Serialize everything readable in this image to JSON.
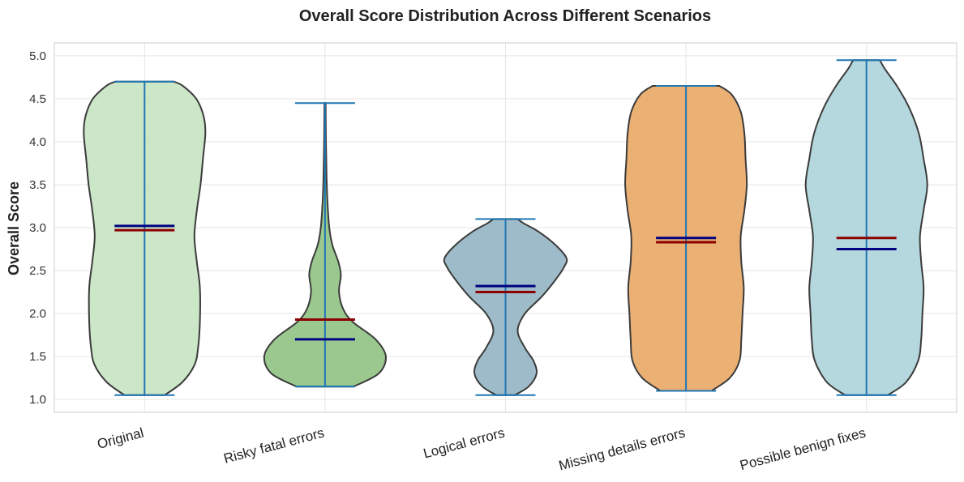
{
  "chart_data": {
    "type": "violin",
    "title": "Overall Score Distribution Across Different Scenarios",
    "xlabel": "",
    "ylabel": "Overall Score",
    "ylim": [
      0.85,
      5.15
    ],
    "yticks": [
      "1.0",
      "1.5",
      "2.0",
      "2.5",
      "3.0",
      "3.5",
      "4.0",
      "4.5",
      "5.0"
    ],
    "grid": true,
    "colors": {
      "edge": "#3b3b3b",
      "extrema_line": "#1f77b4",
      "mean_line": "#000080",
      "median_line": "#8b0000",
      "grid": "#e6e6e6",
      "axes_border": "#cccccc"
    },
    "categories": [
      "Original",
      "Risky fatal errors",
      "Logical errors",
      "Missing details errors",
      "Possible benign fixes"
    ],
    "violins": [
      {
        "category": "Original",
        "fill": "#c7e3c2",
        "min": 1.05,
        "max": 4.7,
        "mean": 3.02,
        "median": 2.97,
        "profile": [
          [
            1.05,
            0.33
          ],
          [
            1.2,
            0.62
          ],
          [
            1.4,
            0.82
          ],
          [
            1.6,
            0.88
          ],
          [
            1.9,
            0.91
          ],
          [
            2.3,
            0.91
          ],
          [
            2.6,
            0.86
          ],
          [
            2.9,
            0.82
          ],
          [
            3.2,
            0.86
          ],
          [
            3.5,
            0.92
          ],
          [
            3.8,
            0.96
          ],
          [
            4.1,
            1.0
          ],
          [
            4.3,
            0.97
          ],
          [
            4.5,
            0.85
          ],
          [
            4.65,
            0.63
          ],
          [
            4.7,
            0.48
          ]
        ]
      },
      {
        "category": "Risky fatal errors",
        "fill": "#8fc283",
        "min": 1.15,
        "max": 4.45,
        "mean": 1.7,
        "median": 1.93,
        "profile": [
          [
            1.15,
            0.47
          ],
          [
            1.3,
            0.88
          ],
          [
            1.5,
            1.0
          ],
          [
            1.7,
            0.83
          ],
          [
            1.9,
            0.46
          ],
          [
            2.05,
            0.3
          ],
          [
            2.25,
            0.23
          ],
          [
            2.45,
            0.26
          ],
          [
            2.6,
            0.22
          ],
          [
            2.8,
            0.12
          ],
          [
            3.0,
            0.07
          ],
          [
            3.3,
            0.04
          ],
          [
            3.6,
            0.025
          ],
          [
            4.0,
            0.015
          ],
          [
            4.45,
            0.01
          ]
        ]
      },
      {
        "category": "Logical errors",
        "fill": "#93b4c3",
        "min": 1.05,
        "max": 3.1,
        "mean": 2.32,
        "median": 2.25,
        "profile": [
          [
            1.05,
            0.15
          ],
          [
            1.15,
            0.38
          ],
          [
            1.3,
            0.51
          ],
          [
            1.45,
            0.46
          ],
          [
            1.6,
            0.32
          ],
          [
            1.8,
            0.2
          ],
          [
            2.0,
            0.32
          ],
          [
            2.2,
            0.6
          ],
          [
            2.4,
            0.83
          ],
          [
            2.55,
            0.97
          ],
          [
            2.65,
            1.0
          ],
          [
            2.8,
            0.82
          ],
          [
            2.95,
            0.55
          ],
          [
            3.05,
            0.3
          ],
          [
            3.1,
            0.2
          ]
        ]
      },
      {
        "category": "Missing details errors",
        "fill": "#e9a764",
        "min": 1.1,
        "max": 4.65,
        "mean": 2.88,
        "median": 2.83,
        "profile": [
          [
            1.1,
            0.42
          ],
          [
            1.25,
            0.72
          ],
          [
            1.45,
            0.88
          ],
          [
            1.7,
            0.91
          ],
          [
            2.0,
            0.93
          ],
          [
            2.3,
            0.95
          ],
          [
            2.6,
            0.91
          ],
          [
            2.9,
            0.9
          ],
          [
            3.2,
            0.96
          ],
          [
            3.5,
            1.0
          ],
          [
            3.8,
            0.98
          ],
          [
            4.1,
            0.96
          ],
          [
            4.35,
            0.9
          ],
          [
            4.55,
            0.75
          ],
          [
            4.65,
            0.55
          ]
        ]
      },
      {
        "category": "Possible benign fixes",
        "fill": "#acd4d9",
        "min": 1.05,
        "max": 4.95,
        "mean": 2.75,
        "median": 2.88,
        "profile": [
          [
            1.05,
            0.35
          ],
          [
            1.2,
            0.65
          ],
          [
            1.45,
            0.85
          ],
          [
            1.7,
            0.9
          ],
          [
            2.0,
            0.92
          ],
          [
            2.3,
            0.94
          ],
          [
            2.6,
            0.9
          ],
          [
            2.9,
            0.88
          ],
          [
            3.2,
            0.94
          ],
          [
            3.5,
            1.0
          ],
          [
            3.8,
            0.94
          ],
          [
            4.1,
            0.86
          ],
          [
            4.4,
            0.7
          ],
          [
            4.65,
            0.5
          ],
          [
            4.85,
            0.3
          ],
          [
            4.95,
            0.22
          ]
        ]
      }
    ]
  }
}
